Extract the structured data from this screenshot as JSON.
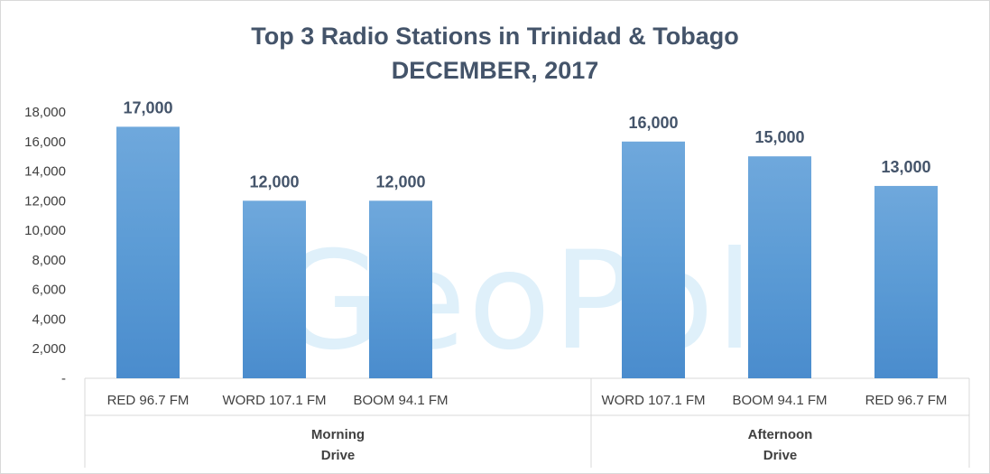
{
  "chart_data": {
    "type": "bar",
    "title": "Top 3 Radio Stations in Trinidad & Tobago",
    "subtitle": "DECEMBER, 2017",
    "watermark": "GeoPoll",
    "ylim": [
      0,
      18000
    ],
    "yticks": [
      "-",
      "2,000",
      "4,000",
      "6,000",
      "8,000",
      "10,000",
      "12,000",
      "14,000",
      "16,000",
      "18,000"
    ],
    "bar_color": "#5b9bd5",
    "groups": [
      {
        "name_lines": [
          "Morning",
          "Drive"
        ],
        "categories": [
          "RED 96.7 FM",
          "WORD 107.1 FM",
          "BOOM 94.1 FM"
        ],
        "values": [
          17000,
          12000,
          12000
        ],
        "labels": [
          "17,000",
          "12,000",
          "12,000"
        ]
      },
      {
        "name_lines": [
          "Afternoon",
          "Drive"
        ],
        "categories": [
          "WORD 107.1 FM",
          "BOOM 94.1 FM",
          "RED 96.7 FM"
        ],
        "values": [
          16000,
          15000,
          13000
        ],
        "labels": [
          "16,000",
          "15,000",
          "13,000"
        ]
      }
    ]
  }
}
